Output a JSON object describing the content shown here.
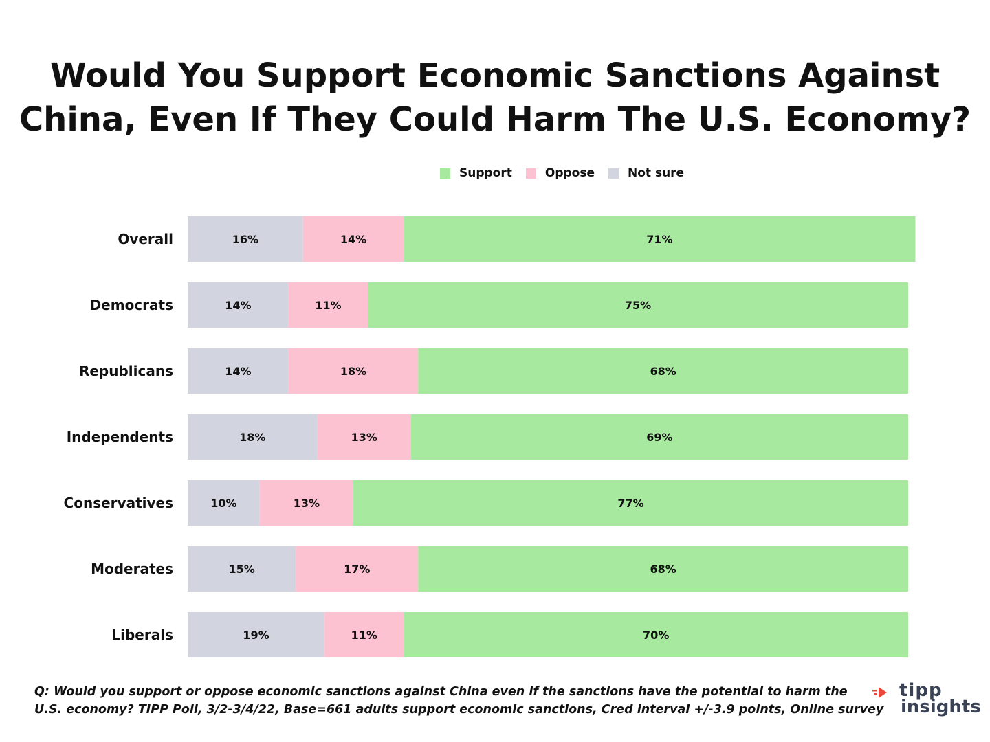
{
  "title_lines": [
    "Would You Support Economic Sanctions Against",
    "China, Even If They Could Harm The U.S. Economy?"
  ],
  "colors": {
    "support": "#a8e9a0",
    "oppose": "#fcc2d1",
    "not_sure": "#d2d4df",
    "text": "#111111",
    "logo_red": "#e8473a",
    "logo_dark": "#3a4256"
  },
  "legend": [
    {
      "label": "Support",
      "color": "#a8e9a0"
    },
    {
      "label": "Oppose",
      "color": "#fcc2d1"
    },
    {
      "label": "Not sure",
      "color": "#d2d4df"
    }
  ],
  "chart_data": {
    "type": "bar",
    "orientation": "horizontal",
    "stacked": true,
    "categories": [
      "Overall",
      "Democrats",
      "Republicans",
      "Independents",
      "Conservatives",
      "Moderates",
      "Liberals"
    ],
    "series": [
      {
        "name": "Not sure",
        "values": [
          16,
          14,
          14,
          18,
          10,
          15,
          19
        ],
        "labels": [
          "16%",
          "14%",
          "14%",
          "18%",
          "10%",
          "15%",
          "19%"
        ]
      },
      {
        "name": "Oppose",
        "values": [
          14,
          11,
          18,
          13,
          13,
          17,
          11
        ],
        "labels": [
          "14%",
          "11%",
          "18%",
          "13%",
          "13%",
          "17%",
          "11%"
        ]
      },
      {
        "name": "Support",
        "values": [
          71,
          75,
          68,
          69,
          77,
          68,
          70
        ],
        "labels": [
          "71%",
          "75%",
          "68%",
          "69%",
          "77%",
          "68%",
          "70%"
        ]
      }
    ],
    "legend_position": "top",
    "grid": false
  },
  "footnote_lines": [
    "Q:  Would you support or oppose economic sanctions against China even if the sanctions have the potential to harm the",
    "U.S. economy? TIPP Poll, 3/2-3/4/22, Base=661 adults support economic sanctions, Cred interval +/-3.9 points, Online survey"
  ],
  "logo": {
    "line1": "tipp",
    "line2": "insights"
  }
}
